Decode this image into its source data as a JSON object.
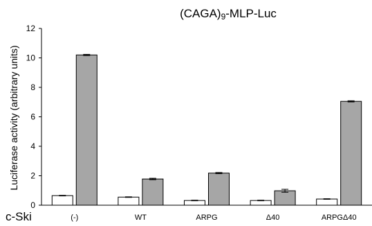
{
  "chart_data": {
    "type": "bar",
    "title_main": "(CAGA)",
    "title_sub": "9",
    "title_rest": "-MLP-Luc",
    "ylabel": "Luciferase activity (arbitrary units)",
    "row_label": "c-Ski",
    "ylim": [
      0,
      12
    ],
    "yticks": [
      "0",
      "2",
      "4",
      "6",
      "8",
      "10",
      "12"
    ],
    "categories": [
      "(-)",
      "WT",
      "ARPG",
      "Δ40",
      "ARPGΔ40"
    ],
    "series": [
      {
        "values": [
          0.65,
          0.55,
          0.32,
          0.32,
          0.42
        ],
        "errors": [
          0.02,
          0.02,
          0.02,
          0.02,
          0.02
        ],
        "color": "#ffffff"
      },
      {
        "values": [
          10.2,
          1.78,
          2.18,
          0.98,
          7.05
        ],
        "errors": [
          0.04,
          0.05,
          0.04,
          0.1,
          0.04
        ],
        "color": "#a6a6a6"
      }
    ],
    "grid": false
  }
}
